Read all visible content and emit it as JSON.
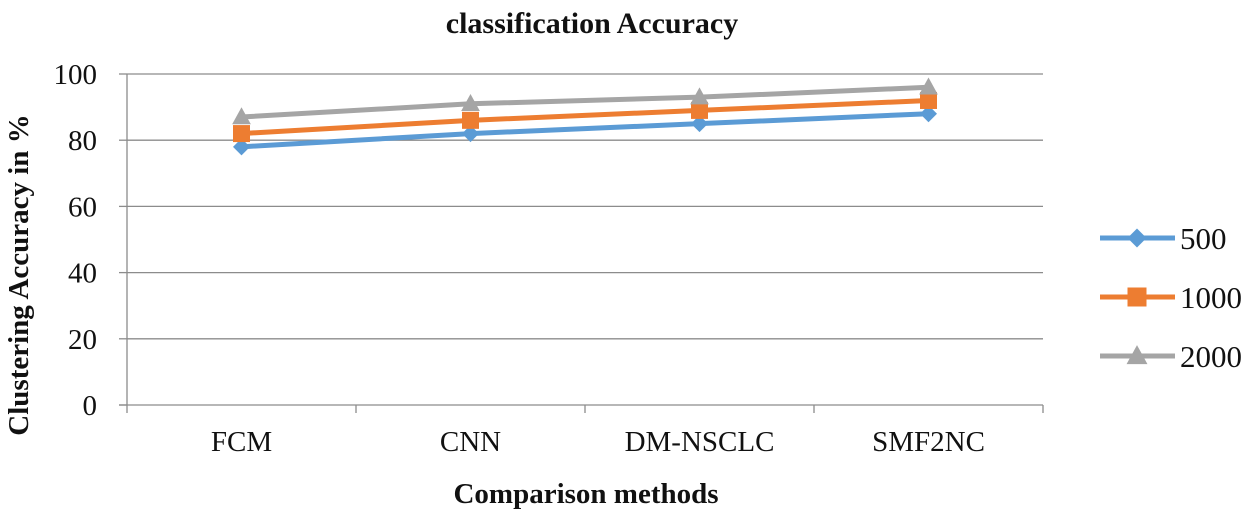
{
  "chart_data": {
    "type": "line",
    "title": "classification  Accuracy",
    "xlabel": "Comparison methods",
    "ylabel": "Clustering Accuracy in %",
    "categories": [
      "FCM",
      "CNN",
      "DM-NSCLC",
      "SMF2NC"
    ],
    "ylim": [
      0,
      100
    ],
    "yticks": [
      0,
      20,
      40,
      60,
      80,
      100
    ],
    "grid": true,
    "legend_position": "right",
    "series": [
      {
        "name": "500",
        "values": [
          78,
          82,
          85,
          88
        ],
        "color": "#5b9bd5",
        "marker": "diamond"
      },
      {
        "name": "1000",
        "values": [
          82,
          86,
          89,
          92
        ],
        "color": "#ed7d31",
        "marker": "square"
      },
      {
        "name": "2000",
        "values": [
          87,
          91,
          93,
          96
        ],
        "color": "#a5a5a5",
        "marker": "triangle"
      }
    ]
  }
}
